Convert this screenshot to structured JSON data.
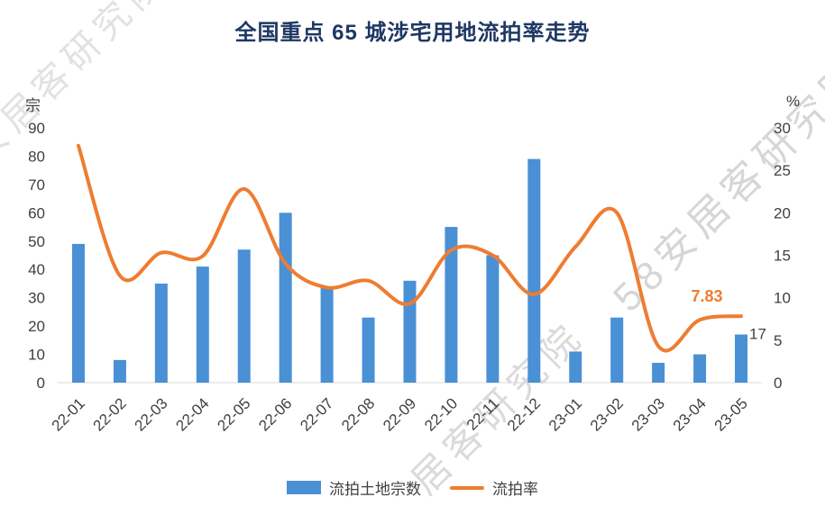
{
  "title": "全国重点 65 城涉宅用地流拍率走势",
  "watermarks": [
    {
      "text": "安居客研究院"
    },
    {
      "text": "58安居客研究院"
    },
    {
      "text": "居客研究院"
    }
  ],
  "left_axis": {
    "title": "宗",
    "min": 0,
    "max": 90,
    "step": 10
  },
  "right_axis": {
    "title": "%",
    "min": 0,
    "max": 30,
    "step": 5
  },
  "legend": [
    {
      "label": "流拍土地宗数"
    },
    {
      "label": "流拍率"
    }
  ],
  "chart_data": {
    "type": "bar+line",
    "title": "全国重点 65 城涉宅用地流拍率走势",
    "categories": [
      "22-01",
      "22-02",
      "22-03",
      "22-04",
      "22-05",
      "22-06",
      "22-07",
      "22-08",
      "22-09",
      "22-10",
      "22-11",
      "22-12",
      "23-01",
      "23-02",
      "23-03",
      "23-04",
      "23-05"
    ],
    "series": [
      {
        "name": "流拍土地宗数",
        "type": "bar",
        "axis": "left",
        "color": "#4A90D5",
        "values": [
          49,
          8,
          35,
          41,
          47,
          60,
          34,
          23,
          36,
          55,
          45,
          79,
          11,
          23,
          7,
          10,
          17
        ]
      },
      {
        "name": "流拍率",
        "type": "line",
        "axis": "right",
        "color": "#ED7D31",
        "values": [
          27.9,
          12.6,
          15.3,
          14.9,
          22.8,
          14.0,
          11.2,
          12.0,
          9.3,
          15.6,
          15.0,
          10.4,
          16.0,
          20.0,
          4.3,
          7.4,
          7.83
        ]
      }
    ],
    "annotations": [
      {
        "text": "7.83",
        "series": "流拍率",
        "index": 16
      },
      {
        "text": "17",
        "series": "流拍土地宗数",
        "index": 16
      }
    ],
    "ylim_left": [
      0,
      90
    ],
    "ylim_right": [
      0,
      30
    ],
    "grid": false,
    "legend_position": "bottom"
  }
}
